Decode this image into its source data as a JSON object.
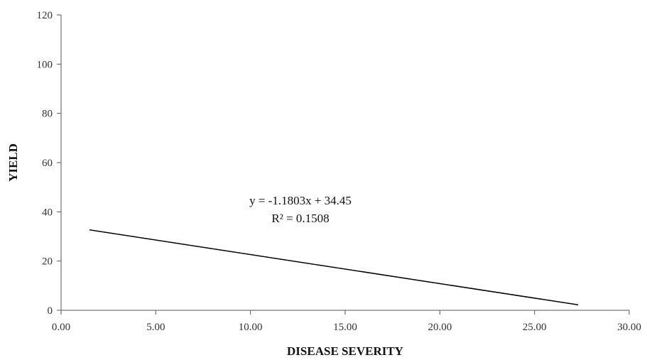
{
  "chart_data": {
    "type": "line",
    "title": "",
    "xlabel": "DISEASE SEVERITY",
    "ylabel": "YIELD",
    "xlim": [
      0,
      30
    ],
    "ylim": [
      0,
      120
    ],
    "xticks": [
      0,
      5,
      10,
      15,
      20,
      25,
      30
    ],
    "yticks": [
      0,
      20,
      40,
      60,
      80,
      100,
      120
    ],
    "xtick_labels": [
      "0.00",
      "5.00",
      "10.00",
      "15.00",
      "20.00",
      "25.00",
      "30.00"
    ],
    "ytick_labels": [
      "0",
      "20",
      "40",
      "60",
      "80",
      "100",
      "120"
    ],
    "grid": false,
    "series": [
      {
        "x": [
          1.5,
          27.3
        ],
        "y": [
          32.68,
          2.23
        ],
        "color": "#000000"
      }
    ],
    "annotations": {
      "equation": "y = -1.1803x + 34.45",
      "r_squared": "R² = 0.1508"
    }
  }
}
